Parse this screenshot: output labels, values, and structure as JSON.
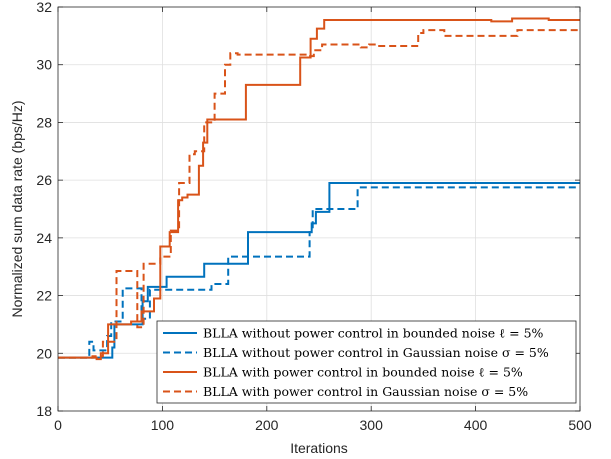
{
  "chart_data": {
    "type": "line",
    "title": "",
    "xlabel": "Iterations",
    "ylabel": "Normalized sum data rate (bps/Hz)",
    "xlim": [
      0,
      500
    ],
    "ylim": [
      18,
      32
    ],
    "xticks": [
      0,
      100,
      200,
      300,
      400,
      500
    ],
    "yticks": [
      18,
      20,
      22,
      24,
      26,
      28,
      30,
      32
    ],
    "xtick_labels": [
      "0",
      "100",
      "200",
      "300",
      "400",
      "500"
    ],
    "ytick_labels": [
      "18",
      "20",
      "22",
      "24",
      "26",
      "28",
      "30",
      "32"
    ],
    "grid": true,
    "legend_position": "bottom-right",
    "colors": {
      "blue": "#0072BD",
      "orange": "#D95319"
    },
    "series": [
      {
        "name": "BLLA without power control in bounded noise ℓ = 5%",
        "color": "#0072BD",
        "style": "solid",
        "x": [
          0,
          52,
          52,
          54,
          54,
          81,
          81,
          86,
          86,
          104,
          104,
          140,
          140,
          182,
          182,
          243,
          243,
          247,
          247,
          260,
          260,
          500
        ],
        "y": [
          19.85,
          19.85,
          20.2,
          20.2,
          21.0,
          21.0,
          21.8,
          21.8,
          22.3,
          22.3,
          22.65,
          22.65,
          23.1,
          23.1,
          24.2,
          24.2,
          24.5,
          24.5,
          24.9,
          24.9,
          25.9,
          25.9
        ]
      },
      {
        "name": "BLLA without power control in Gaussian noise σ = 5%",
        "color": "#0072BD",
        "style": "dashed",
        "x": [
          0,
          30,
          30,
          34,
          34,
          47,
          47,
          51,
          51,
          62,
          62,
          80,
          80,
          88,
          88,
          147,
          147,
          163,
          163,
          241,
          241,
          244,
          244,
          262,
          262,
          287,
          287,
          500
        ],
        "y": [
          19.85,
          19.85,
          20.4,
          20.4,
          20.1,
          20.1,
          20.6,
          20.6,
          21.1,
          21.1,
          22.25,
          22.25,
          21.2,
          21.2,
          22.2,
          22.2,
          22.4,
          22.4,
          23.35,
          23.35,
          24.2,
          24.2,
          25.0,
          25.0,
          25.0,
          25.0,
          25.75,
          25.75
        ]
      },
      {
        "name": "BLLA with power control in bounded noise ℓ = 5%",
        "color": "#D95319",
        "style": "solid",
        "x": [
          0,
          37,
          37,
          41,
          41,
          48,
          48,
          70,
          70,
          80,
          80,
          92,
          92,
          98,
          98,
          107,
          107,
          115,
          115,
          119,
          119,
          124,
          124,
          135,
          135,
          139,
          139,
          143,
          143,
          180,
          180,
          232,
          232,
          242,
          242,
          248,
          248,
          255,
          255,
          288,
          288,
          415,
          415,
          435,
          435,
          470,
          470,
          500
        ],
        "y": [
          19.85,
          19.85,
          19.8,
          19.8,
          20.0,
          20.0,
          21.0,
          21.0,
          21.1,
          21.1,
          21.45,
          21.45,
          21.9,
          21.9,
          23.7,
          23.7,
          24.2,
          24.2,
          25.3,
          25.3,
          25.4,
          25.4,
          25.5,
          25.5,
          26.5,
          26.5,
          27.3,
          27.3,
          28.1,
          28.1,
          29.3,
          29.3,
          30.25,
          30.25,
          30.9,
          30.9,
          31.25,
          31.25,
          31.55,
          31.55,
          31.55,
          31.55,
          31.5,
          31.5,
          31.6,
          31.6,
          31.55,
          31.55
        ]
      },
      {
        "name": "BLLA with power control in Gaussian noise σ = 5%",
        "color": "#D95319",
        "style": "dashed",
        "x": [
          0,
          33,
          33,
          43,
          43,
          56,
          56,
          76,
          76,
          82,
          82,
          98,
          98,
          108,
          108,
          116,
          116,
          126,
          126,
          131,
          131,
          140,
          140,
          150,
          150,
          160,
          160,
          165,
          165,
          172,
          172,
          240,
          240,
          245,
          245,
          253,
          253,
          290,
          290,
          298,
          298,
          305,
          305,
          345,
          345,
          350,
          350,
          370,
          370,
          440,
          440,
          475,
          475,
          500
        ],
        "y": [
          19.85,
          19.85,
          19.9,
          19.9,
          20.4,
          20.4,
          22.85,
          22.85,
          20.9,
          20.9,
          23.1,
          23.1,
          23.35,
          23.35,
          24.25,
          24.25,
          25.9,
          25.9,
          26.9,
          26.9,
          27.0,
          27.0,
          28.0,
          28.0,
          29.0,
          29.0,
          30.0,
          30.0,
          30.4,
          30.4,
          30.35,
          30.35,
          30.3,
          30.3,
          30.5,
          30.5,
          30.7,
          30.7,
          30.6,
          30.6,
          30.7,
          30.7,
          30.65,
          30.65,
          31.1,
          31.1,
          31.2,
          31.2,
          31.0,
          31.0,
          31.2,
          31.2,
          31.2,
          31.2
        ]
      }
    ]
  }
}
